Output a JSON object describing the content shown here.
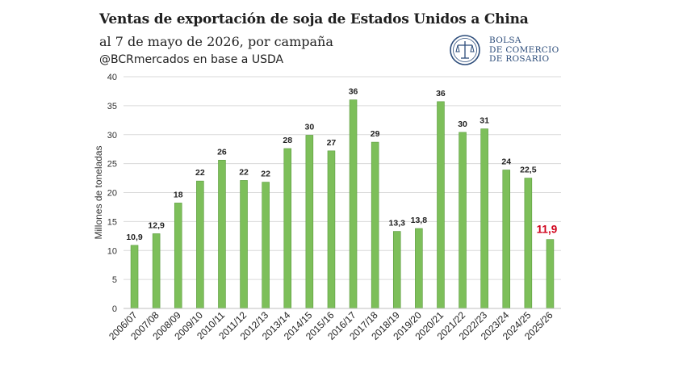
{
  "header": {
    "title": "Ventas de exportación de soja de Estados Unidos a China",
    "subtitle": "al 7 de mayo de 2026, por campaña",
    "source": "@BCRmercados en base a USDA"
  },
  "logo": {
    "lines": [
      "BOLSA",
      "DE COMERCIO",
      "DE ROSARIO"
    ],
    "color": "#2c4c7a"
  },
  "chart_data": {
    "type": "bar",
    "ylabel": "Millones de toneladas",
    "xlabel": "",
    "ylim": [
      0,
      40
    ],
    "yticks": [
      0,
      5,
      10,
      15,
      20,
      25,
      30,
      35,
      40
    ],
    "grid": true,
    "bar_color": "#7dbf5a",
    "highlight_color": "#d0021b",
    "categories": [
      "2006/07",
      "2007/08",
      "2008/09",
      "2009/10",
      "2010/11",
      "2011/12",
      "2012/13",
      "2013/14",
      "2014/15",
      "2015/16",
      "2016/17",
      "2017/18",
      "2018/19",
      "2019/20",
      "2020/21",
      "2021/22",
      "2022/23",
      "2023/24",
      "2024/25",
      "2025/26"
    ],
    "values": [
      10.9,
      12.9,
      18.2,
      22.0,
      25.6,
      22.1,
      21.8,
      27.6,
      29.9,
      27.2,
      36.0,
      28.7,
      13.3,
      13.8,
      35.7,
      30.4,
      31.0,
      23.9,
      22.5,
      11.9
    ],
    "data_labels": [
      "10,9",
      "12,9",
      "18",
      "22",
      "26",
      "22",
      "22",
      "28",
      "30",
      "27",
      "36",
      "29",
      "13,3",
      "13,8",
      "36",
      "30",
      "31",
      "24",
      "22,5",
      "11,9"
    ],
    "highlight_index": 19
  }
}
